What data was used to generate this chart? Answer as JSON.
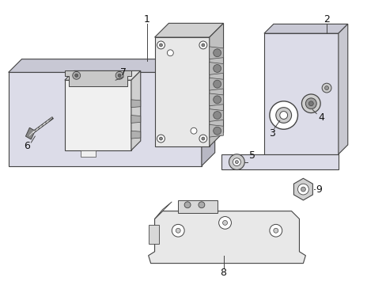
{
  "bg_color": "#ffffff",
  "line_color": "#444444",
  "board_face": "#dcdce8",
  "board_top": "#c8c8d4",
  "board_edge": "#b8b8c4",
  "mod_front": "#e8e8e8",
  "mod_side": "#c0c0c0",
  "mod_top": "#d0d0d0",
  "ecu_front": "#f0f0f0",
  "ecu_side": "#d0d0d0",
  "ecu_top": "#e0e0e0",
  "plate_face": "#dcdce8",
  "plate_top": "#c8c8d4",
  "bracket_face": "#e8e8e8",
  "part_numbers": [
    "1",
    "2",
    "3",
    "4",
    "5",
    "6",
    "7",
    "8",
    "9"
  ]
}
